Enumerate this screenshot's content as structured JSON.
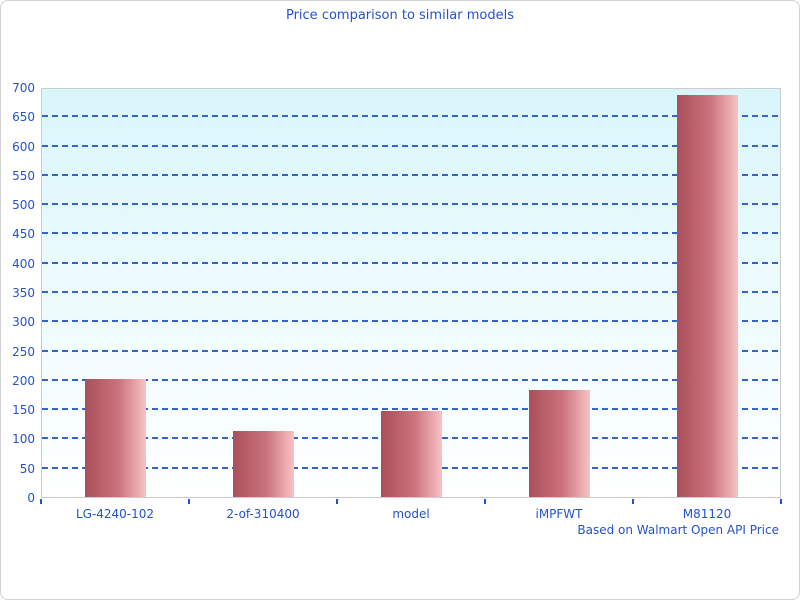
{
  "chart_data": {
    "type": "bar",
    "title": "Price comparison to similar models",
    "footer_note": "Based on Walmart Open API Price",
    "categories": [
      "LG-4240-102",
      "2-of-310400",
      "model",
      "iMPFWT",
      "M81120"
    ],
    "values": [
      202,
      112,
      147,
      182,
      687
    ],
    "xlabel": "",
    "ylabel": "",
    "ylim": [
      0,
      700
    ],
    "ytick_step": 50,
    "y_ticks": [
      0,
      50,
      100,
      150,
      200,
      250,
      300,
      350,
      400,
      450,
      500,
      550,
      600,
      650,
      700
    ],
    "grid": "horizontal-dashed",
    "legend": "none",
    "colors": {
      "text_blue": "#2353cc",
      "grid_blue": "#3464c8",
      "bar_gradient_left": "#aa4f5a",
      "bar_gradient_mid": "#ca737d",
      "bar_gradient_right": "#f9c2c5",
      "plot_bg_top": "#d9f6fb",
      "plot_bg_bottom": "#ffffff",
      "border_gray": "#c9cdce",
      "page_border": "#d2d2d2",
      "page_bg": "#ffffff"
    }
  }
}
